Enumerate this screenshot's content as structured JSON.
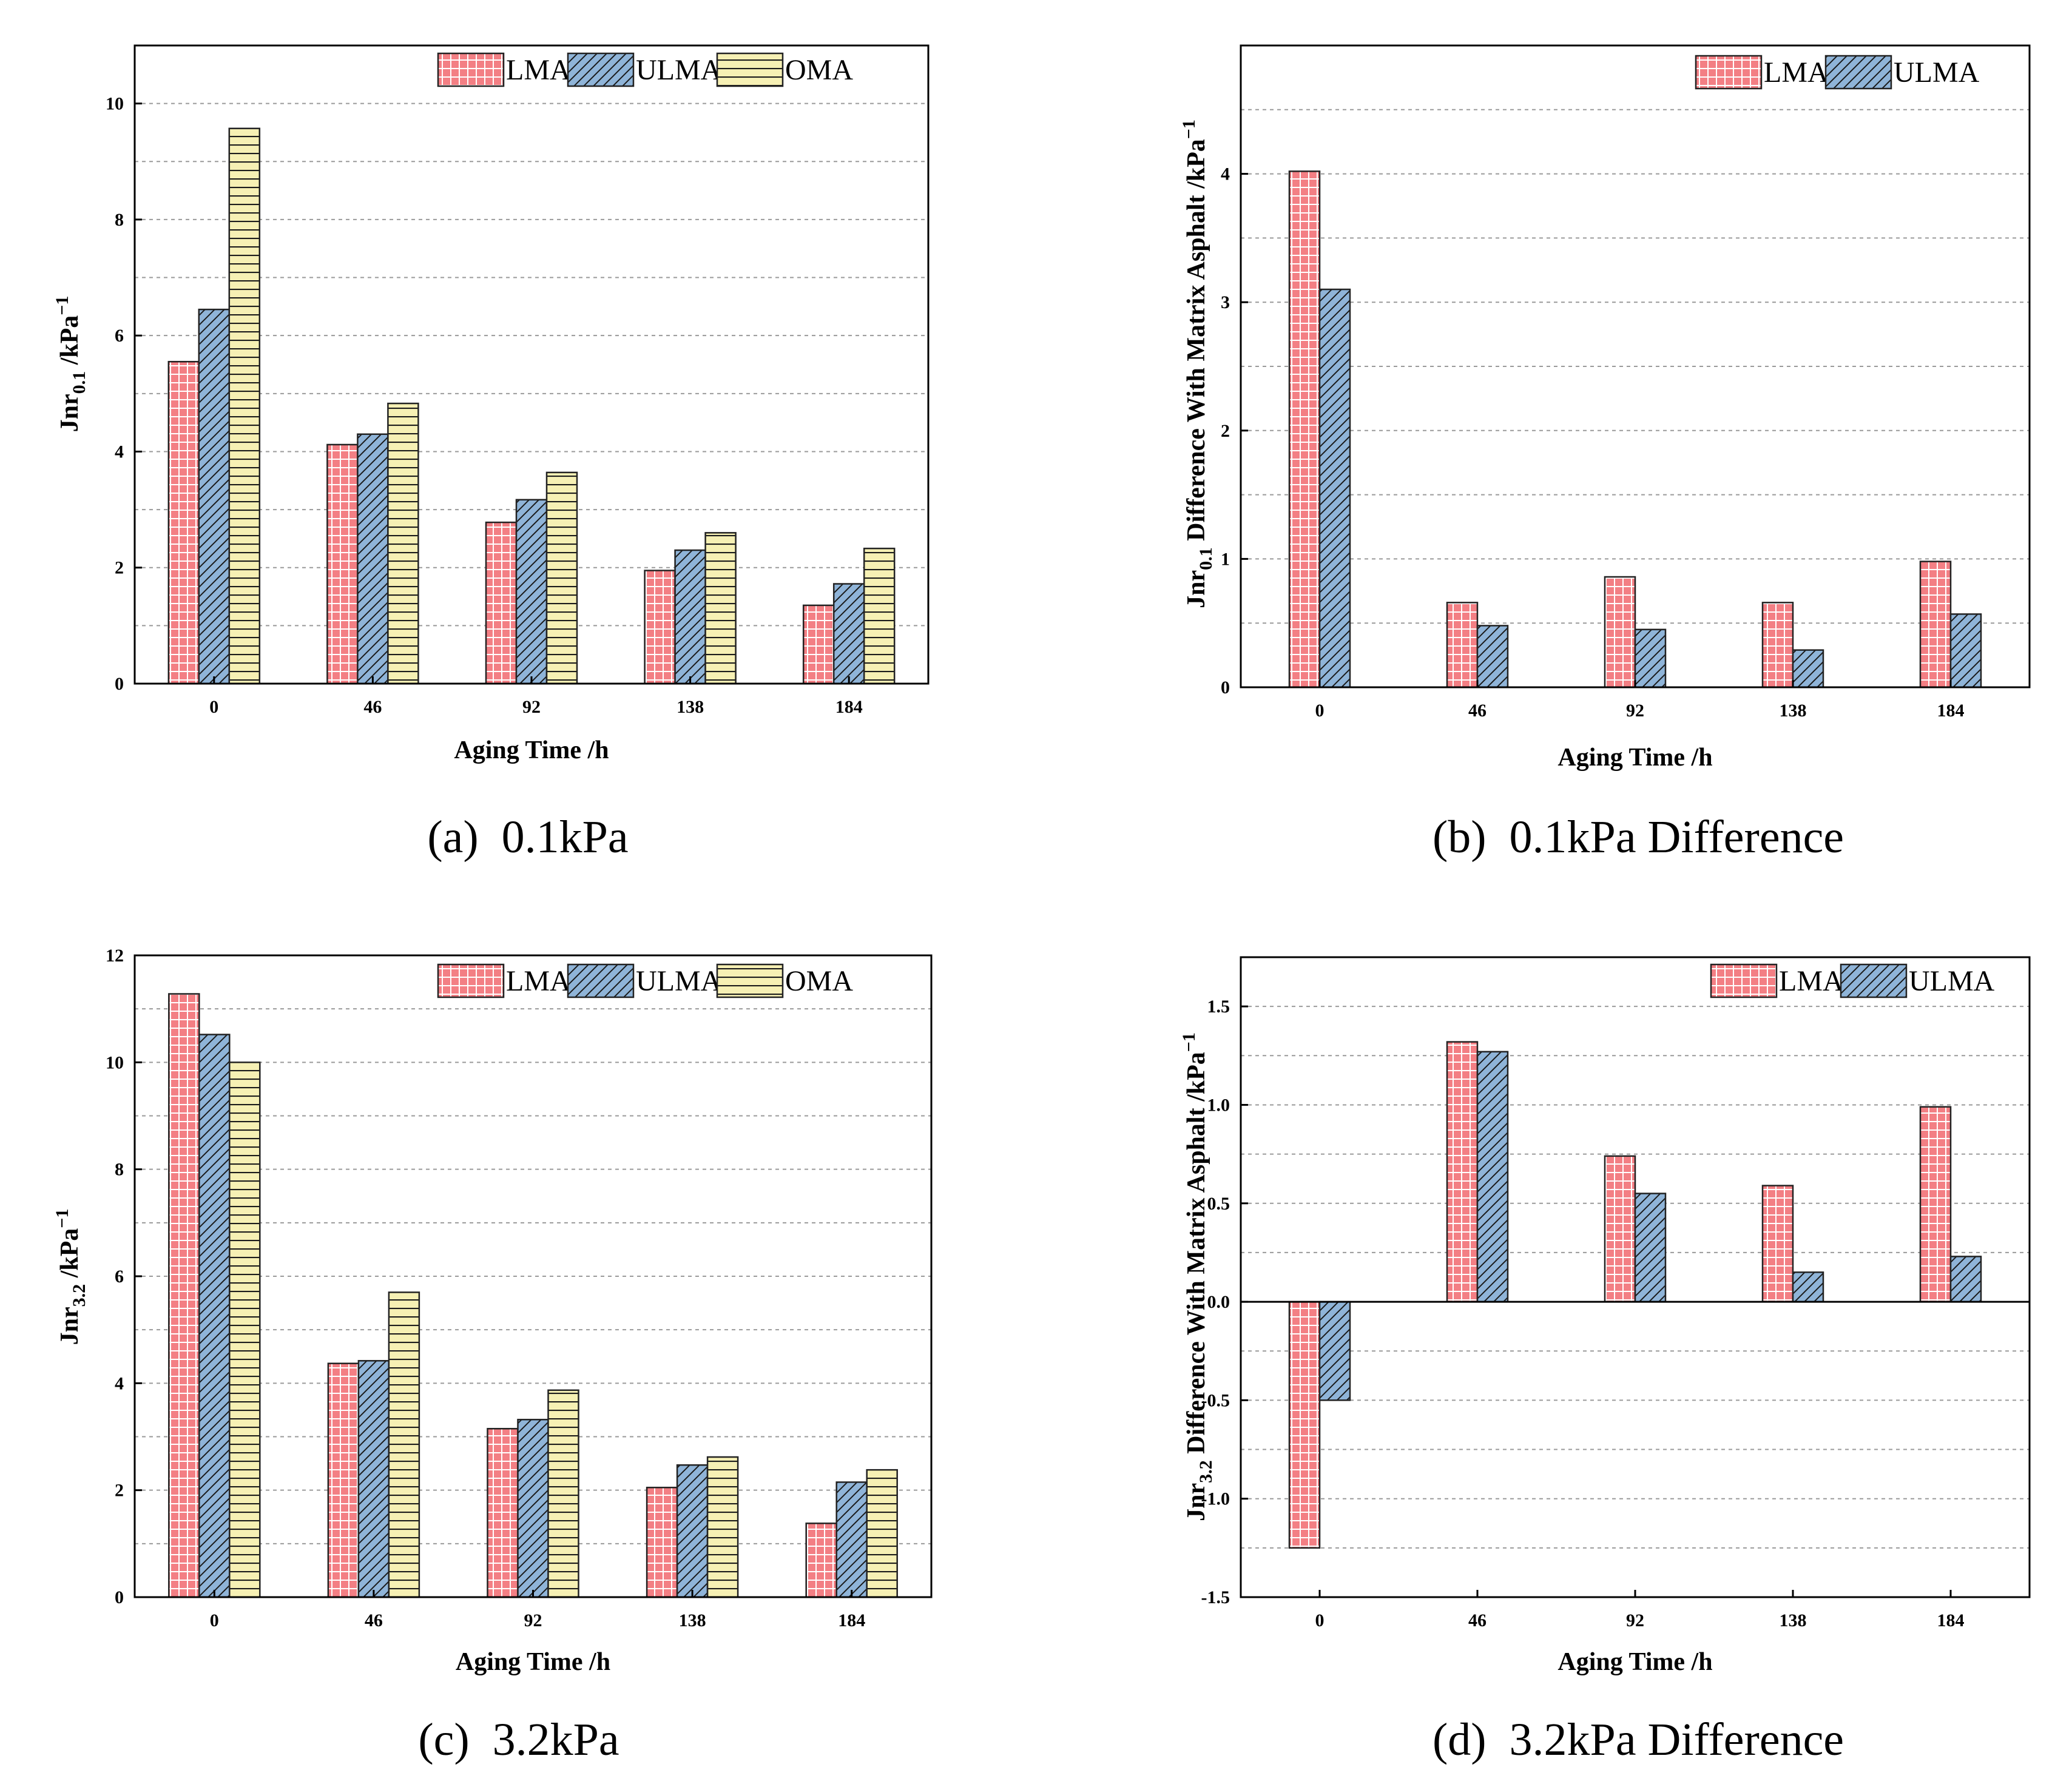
{
  "colors": {
    "LMA": "#f37f84",
    "ULMA": "#8fb4d8",
    "OMA": "#f6f0b4",
    "grid": "#9a9a9a",
    "axis": "#000000"
  },
  "chart_data": [
    {
      "id": "a",
      "type": "bar",
      "caption": "(a)  0.1kPa",
      "xlabel": "Aging Time /h",
      "ylabel_main": "Jnr",
      "ylabel_sub": "0.1",
      "ylabel_rest": " /kPa",
      "ylabel_sup": "−1",
      "categories": [
        "0",
        "46",
        "92",
        "138",
        "184"
      ],
      "ylim": [
        0,
        11
      ],
      "yticks": [
        "0",
        "2",
        "4",
        "6",
        "8",
        "10"
      ],
      "ytick_values": [
        0,
        2,
        4,
        6,
        8,
        10
      ],
      "grid": true,
      "legend_position": "top-right",
      "series": [
        {
          "name": "LMA",
          "values": [
            5.55,
            4.12,
            2.78,
            1.95,
            1.35
          ]
        },
        {
          "name": "ULMA",
          "values": [
            6.45,
            4.3,
            3.17,
            2.3,
            1.72
          ]
        },
        {
          "name": "OMA",
          "values": [
            9.57,
            4.83,
            3.64,
            2.6,
            2.33
          ]
        }
      ]
    },
    {
      "id": "b",
      "type": "bar",
      "caption": "(b)  0.1kPa Difference",
      "xlabel": "Aging Time /h",
      "ylabel_main": "Jnr",
      "ylabel_sub": "0.1",
      "ylabel_rest": " Difference With Matrix Asphalt /kPa",
      "ylabel_sup": "−1",
      "categories": [
        "0",
        "46",
        "92",
        "138",
        "184"
      ],
      "ylim": [
        0,
        5
      ],
      "yticks": [
        "0",
        "1",
        "2",
        "3",
        "4"
      ],
      "ytick_values": [
        0,
        1,
        2,
        3,
        4
      ],
      "grid": true,
      "legend_position": "top-right",
      "series": [
        {
          "name": "LMA",
          "values": [
            4.02,
            0.66,
            0.86,
            0.66,
            0.98
          ]
        },
        {
          "name": "ULMA",
          "values": [
            3.1,
            0.48,
            0.45,
            0.29,
            0.57
          ]
        }
      ]
    },
    {
      "id": "c",
      "type": "bar",
      "caption": "(c)  3.2kPa",
      "xlabel": "Aging Time /h",
      "ylabel_main": "Jnr",
      "ylabel_sub": "3.2",
      "ylabel_rest": " /kPa",
      "ylabel_sup": "−1",
      "categories": [
        "0",
        "46",
        "92",
        "138",
        "184"
      ],
      "ylim": [
        0,
        12
      ],
      "yticks": [
        "0",
        "2",
        "4",
        "6",
        "8",
        "10",
        "12"
      ],
      "ytick_values": [
        0,
        2,
        4,
        6,
        8,
        10,
        12
      ],
      "grid": true,
      "legend_position": "top-right",
      "series": [
        {
          "name": "LMA",
          "values": [
            11.28,
            4.37,
            3.15,
            2.05,
            1.38
          ]
        },
        {
          "name": "ULMA",
          "values": [
            10.52,
            4.42,
            3.32,
            2.47,
            2.15
          ]
        },
        {
          "name": "OMA",
          "values": [
            10.0,
            5.7,
            3.87,
            2.62,
            2.38
          ]
        }
      ]
    },
    {
      "id": "d",
      "type": "bar",
      "caption": "(d)  3.2kPa Difference",
      "xlabel": "Aging Time /h",
      "ylabel_main": "Jnr",
      "ylabel_sub": "3.2",
      "ylabel_rest": " Difference With Matrix Asphalt /kPa",
      "ylabel_sup": "−1",
      "categories": [
        "0",
        "46",
        "92",
        "138",
        "184"
      ],
      "ylim": [
        -1.5,
        1.75
      ],
      "yticks": [
        "-1.5",
        "-1.0",
        "-0.5",
        "0.0",
        "0.5",
        "1.0",
        "1.5"
      ],
      "ytick_values": [
        -1.5,
        -1.0,
        -0.5,
        0.0,
        0.5,
        1.0,
        1.5
      ],
      "grid": true,
      "legend_position": "top-right",
      "series": [
        {
          "name": "LMA",
          "values": [
            -1.25,
            1.32,
            0.74,
            0.59,
            0.99
          ]
        },
        {
          "name": "ULMA",
          "values": [
            -0.5,
            1.27,
            0.55,
            0.15,
            0.23
          ]
        }
      ]
    }
  ]
}
